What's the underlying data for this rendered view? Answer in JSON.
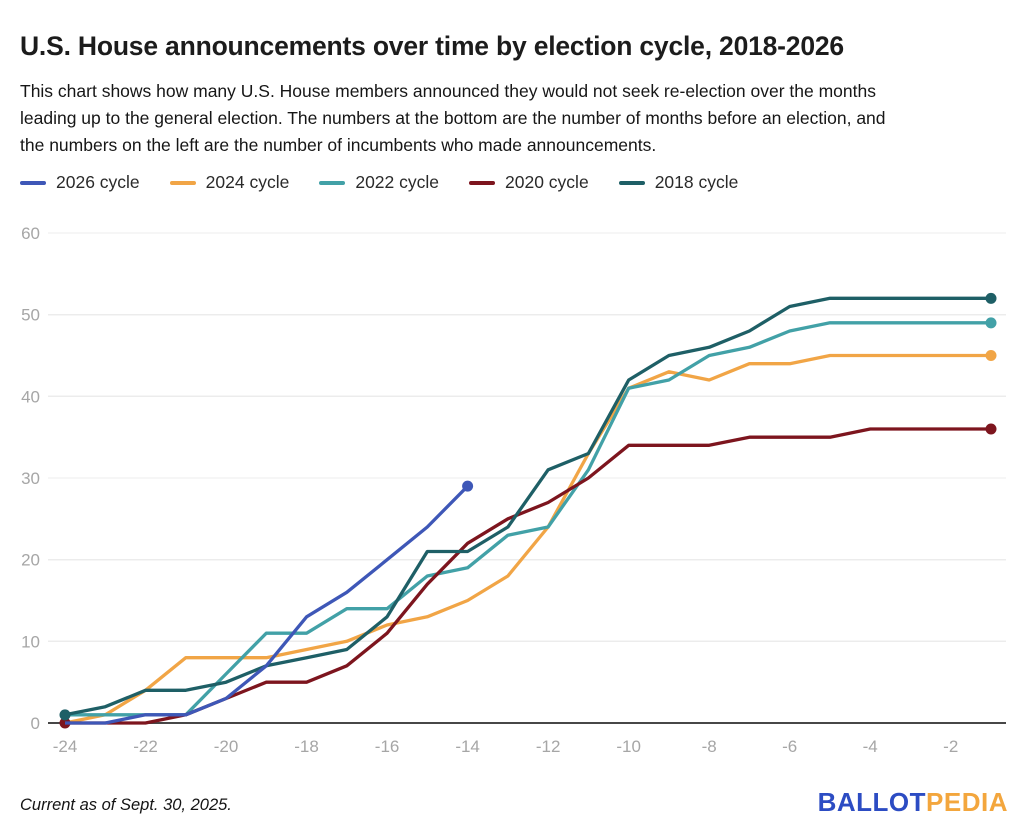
{
  "title": "U.S. House announcements over time by election cycle, 2018-2026",
  "description_lines": [
    "This chart shows how many U.S. House members announced they would not seek re-election over the months",
    "leading up to the general election. The numbers at the bottom are the number of months before an election, and",
    "the numbers on the left are the number of incumbents who made announcements."
  ],
  "legend": [
    {
      "label": "2026 cycle",
      "color": "#3e57b7"
    },
    {
      "label": "2024 cycle",
      "color": "#f1a546"
    },
    {
      "label": "2022 cycle",
      "color": "#42a1a7"
    },
    {
      "label": "2020 cycle",
      "color": "#7d151e"
    },
    {
      "label": "2018 cycle",
      "color": "#1e5f66"
    }
  ],
  "footer": {
    "note": "Current as of Sept. 30, 2025.",
    "logo_ballot": "BALLOT",
    "logo_pedia": "PEDIA",
    "logo_ballot_color": "#2c4cc3",
    "logo_pedia_color": "#f3a63d"
  },
  "chart_data": {
    "type": "line",
    "title": "U.S. House announcements over time by election cycle, 2018-2026",
    "xlabel": "months before an election",
    "ylabel": "number of incumbents who made announcements",
    "xlim": [
      -24,
      -1
    ],
    "ylim": [
      0,
      60
    ],
    "xticks": [
      -24,
      -22,
      -20,
      -18,
      -16,
      -14,
      -12,
      -10,
      -8,
      -6,
      -4,
      -2
    ],
    "yticks": [
      0,
      10,
      20,
      30,
      40,
      50,
      60
    ],
    "grid": "horizontal",
    "legend_position": "top",
    "series": [
      {
        "name": "2024 cycle",
        "color": "#f1a546",
        "start_dot": false,
        "end_dot": true,
        "x": [
          -24,
          -23,
          -22,
          -21,
          -20,
          -19,
          -18,
          -17,
          -16,
          -15,
          -14,
          -13,
          -12,
          -11,
          -10,
          -9,
          -8,
          -7,
          -6,
          -5,
          -4,
          -3,
          -2,
          -1
        ],
        "values": [
          0,
          1,
          4,
          8,
          8,
          8,
          9,
          10,
          12,
          13,
          15,
          18,
          24,
          33,
          41,
          43,
          42,
          44,
          44,
          45,
          45,
          45,
          45,
          45
        ]
      },
      {
        "name": "2022 cycle",
        "color": "#42a1a7",
        "start_dot": false,
        "end_dot": true,
        "x": [
          -24,
          -23,
          -22,
          -21,
          -20,
          -19,
          -18,
          -17,
          -16,
          -15,
          -14,
          -13,
          -12,
          -11,
          -10,
          -9,
          -8,
          -7,
          -6,
          -5,
          -4,
          -3,
          -2,
          -1
        ],
        "values": [
          1,
          1,
          1,
          1,
          6,
          11,
          11,
          14,
          14,
          18,
          19,
          23,
          24,
          31,
          41,
          42,
          45,
          46,
          48,
          49,
          49,
          49,
          49,
          49
        ]
      },
      {
        "name": "2020 cycle",
        "color": "#7d151e",
        "start_dot": true,
        "end_dot": true,
        "x": [
          -24,
          -23,
          -22,
          -21,
          -20,
          -19,
          -18,
          -17,
          -16,
          -15,
          -14,
          -13,
          -12,
          -11,
          -10,
          -9,
          -8,
          -7,
          -6,
          -5,
          -4,
          -3,
          -2,
          -1
        ],
        "values": [
          0,
          0,
          0,
          1,
          3,
          5,
          5,
          7,
          11,
          17,
          22,
          25,
          27,
          30,
          34,
          34,
          34,
          35,
          35,
          35,
          36,
          36,
          36,
          36
        ]
      },
      {
        "name": "2018 cycle",
        "color": "#1e5f66",
        "start_dot": true,
        "end_dot": true,
        "x": [
          -24,
          -23,
          -22,
          -21,
          -20,
          -19,
          -18,
          -17,
          -16,
          -15,
          -14,
          -13,
          -12,
          -11,
          -10,
          -9,
          -8,
          -7,
          -6,
          -5,
          -4,
          -3,
          -2,
          -1
        ],
        "values": [
          1,
          2,
          4,
          4,
          5,
          7,
          8,
          9,
          13,
          21,
          21,
          24,
          31,
          33,
          42,
          45,
          46,
          48,
          51,
          52,
          52,
          52,
          52,
          52
        ]
      },
      {
        "name": "2026 cycle",
        "color": "#3e57b7",
        "start_dot": false,
        "end_dot": true,
        "x": [
          -24,
          -23,
          -22,
          -21,
          -20,
          -19,
          -18,
          -17,
          -16,
          -15,
          -14
        ],
        "values": [
          0,
          0,
          1,
          1,
          3,
          7,
          13,
          16,
          20,
          24,
          29
        ]
      }
    ]
  }
}
